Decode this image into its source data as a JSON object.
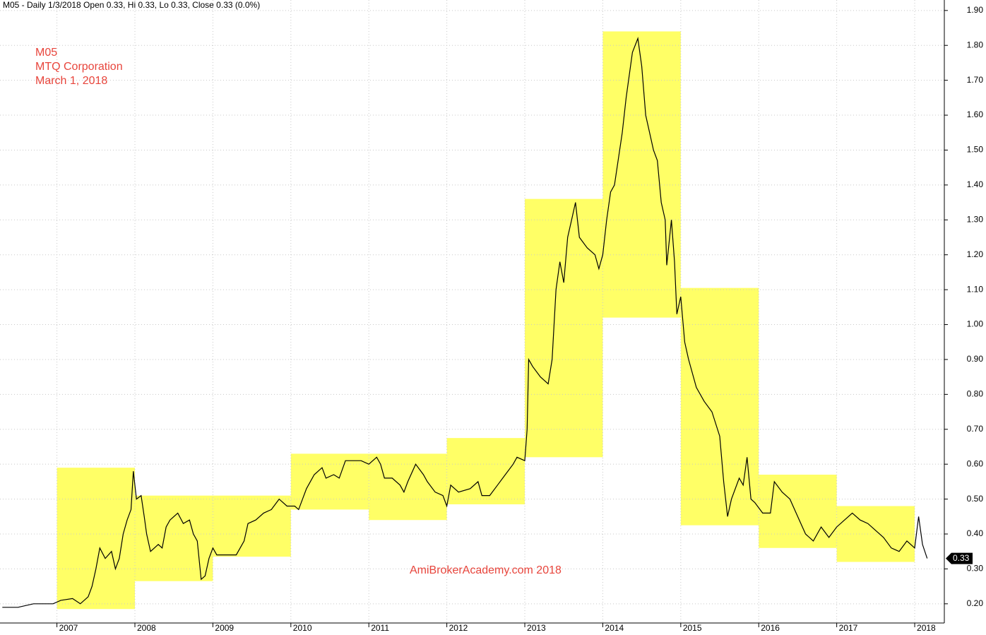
{
  "chart_data": {
    "type": "line",
    "header": "M05 - Daily 1/3/2018 Open 0.33, Hi 0.33, Lo 0.33, Close 0.33 (0.0%)",
    "ticker": "M05",
    "company": "MTQ Corporation",
    "date": "March 1, 2018",
    "watermark": "AmiBrokerAcademy.com  2018",
    "last_price": 0.33,
    "xlim": [
      2006.27,
      2018.38
    ],
    "xticks": [
      2007,
      2008,
      2009,
      2010,
      2011,
      2012,
      2013,
      2014,
      2015,
      2016,
      2017,
      2018
    ],
    "ylim": [
      0.145,
      1.93
    ],
    "yticks": [
      {
        "value": 0.2,
        "label": "0.20"
      },
      {
        "value": 0.3,
        "label": "0.30"
      },
      {
        "value": 0.4,
        "label": "0.40"
      },
      {
        "value": 0.5,
        "label": "0.50"
      },
      {
        "value": 0.6,
        "label": "0.60"
      },
      {
        "value": 0.7,
        "label": "0.70"
      },
      {
        "value": 0.8,
        "label": "0.80"
      },
      {
        "value": 0.9,
        "label": "0.90"
      },
      {
        "value": 1.0,
        "label": "1.00"
      },
      {
        "value": 1.1,
        "label": "1.10"
      },
      {
        "value": 1.2,
        "label": "1.20"
      },
      {
        "value": 1.3,
        "label": "1.30"
      },
      {
        "value": 1.4,
        "label": "1.40"
      },
      {
        "value": 1.5,
        "label": "1.50"
      },
      {
        "value": 1.6,
        "label": "1.60"
      },
      {
        "value": 1.7,
        "label": "1.70"
      },
      {
        "value": 1.8,
        "label": "1.80"
      },
      {
        "value": 1.9,
        "label": "1.90"
      }
    ],
    "grid": true,
    "boxes": {
      "color": "#ffff66",
      "x_start": [
        2007,
        2008,
        2009,
        2010,
        2011,
        2012,
        2013,
        2014,
        2015,
        2016,
        2017
      ],
      "x_end": [
        2008,
        2009,
        2010,
        2011,
        2012,
        2013,
        2014,
        2015,
        2016,
        2017,
        2018
      ],
      "high": [
        0.59,
        0.51,
        0.51,
        0.63,
        0.63,
        0.675,
        1.36,
        1.84,
        1.105,
        0.57,
        0.48
      ],
      "low": [
        0.185,
        0.265,
        0.335,
        0.47,
        0.44,
        0.485,
        0.62,
        1.02,
        0.425,
        0.36,
        0.32
      ]
    },
    "series": [
      {
        "name": "M05",
        "color": "#000000",
        "x": [
          2006.3,
          2006.5,
          2006.7,
          2006.95,
          2007.05,
          2007.2,
          2007.3,
          2007.4,
          2007.45,
          2007.5,
          2007.55,
          2007.62,
          2007.7,
          2007.75,
          2007.8,
          2007.85,
          2007.9,
          2007.95,
          2007.98,
          2008.02,
          2008.08,
          2008.12,
          2008.15,
          2008.2,
          2008.3,
          2008.35,
          2008.4,
          2008.45,
          2008.5,
          2008.55,
          2008.62,
          2008.7,
          2008.75,
          2008.8,
          2008.85,
          2008.9,
          2008.95,
          2009.0,
          2009.05,
          2009.15,
          2009.3,
          2009.4,
          2009.45,
          2009.55,
          2009.65,
          2009.75,
          2009.85,
          2009.95,
          2010.05,
          2010.1,
          2010.2,
          2010.3,
          2010.4,
          2010.45,
          2010.55,
          2010.62,
          2010.7,
          2010.8,
          2010.9,
          2011.0,
          2011.1,
          2011.15,
          2011.2,
          2011.3,
          2011.4,
          2011.45,
          2011.5,
          2011.6,
          2011.7,
          2011.75,
          2011.85,
          2011.95,
          2012.0,
          2012.05,
          2012.15,
          2012.3,
          2012.4,
          2012.45,
          2012.55,
          2012.65,
          2012.75,
          2012.85,
          2012.9,
          2013.0,
          2013.03,
          2013.05,
          2013.1,
          2013.2,
          2013.3,
          2013.35,
          2013.4,
          2013.45,
          2013.5,
          2013.55,
          2013.6,
          2013.65,
          2013.7,
          2013.8,
          2013.9,
          2013.95,
          2014.0,
          2014.05,
          2014.1,
          2014.15,
          2014.25,
          2014.3,
          2014.38,
          2014.45,
          2014.5,
          2014.55,
          2014.6,
          2014.65,
          2014.7,
          2014.75,
          2014.8,
          2014.82,
          2014.88,
          2014.92,
          2014.95,
          2015.0,
          2015.05,
          2015.1,
          2015.2,
          2015.3,
          2015.4,
          2015.5,
          2015.55,
          2015.6,
          2015.65,
          2015.75,
          2015.8,
          2015.85,
          2015.9,
          2015.95,
          2016.05,
          2016.15,
          2016.2,
          2016.3,
          2016.4,
          2016.5,
          2016.6,
          2016.7,
          2016.8,
          2016.9,
          2017.0,
          2017.1,
          2017.2,
          2017.3,
          2017.4,
          2017.5,
          2017.6,
          2017.7,
          2017.8,
          2017.9,
          2018.0,
          2018.05,
          2018.1,
          2018.16
        ],
        "values": [
          0.19,
          0.19,
          0.2,
          0.2,
          0.21,
          0.215,
          0.2,
          0.22,
          0.25,
          0.3,
          0.36,
          0.33,
          0.35,
          0.3,
          0.33,
          0.4,
          0.44,
          0.47,
          0.58,
          0.5,
          0.51,
          0.45,
          0.4,
          0.35,
          0.37,
          0.36,
          0.42,
          0.44,
          0.45,
          0.46,
          0.43,
          0.44,
          0.4,
          0.38,
          0.27,
          0.28,
          0.33,
          0.36,
          0.34,
          0.34,
          0.34,
          0.38,
          0.43,
          0.44,
          0.46,
          0.47,
          0.5,
          0.48,
          0.48,
          0.47,
          0.53,
          0.57,
          0.59,
          0.56,
          0.57,
          0.56,
          0.61,
          0.61,
          0.61,
          0.6,
          0.62,
          0.6,
          0.56,
          0.56,
          0.54,
          0.52,
          0.55,
          0.6,
          0.57,
          0.55,
          0.52,
          0.51,
          0.48,
          0.54,
          0.52,
          0.53,
          0.55,
          0.51,
          0.51,
          0.54,
          0.57,
          0.6,
          0.62,
          0.61,
          0.7,
          0.9,
          0.88,
          0.85,
          0.83,
          0.9,
          1.1,
          1.18,
          1.12,
          1.25,
          1.3,
          1.35,
          1.25,
          1.22,
          1.2,
          1.16,
          1.2,
          1.3,
          1.38,
          1.4,
          1.55,
          1.65,
          1.78,
          1.82,
          1.74,
          1.6,
          1.55,
          1.5,
          1.47,
          1.35,
          1.3,
          1.17,
          1.3,
          1.18,
          1.03,
          1.08,
          0.95,
          0.9,
          0.82,
          0.78,
          0.75,
          0.68,
          0.55,
          0.45,
          0.5,
          0.56,
          0.54,
          0.62,
          0.5,
          0.49,
          0.46,
          0.46,
          0.55,
          0.52,
          0.5,
          0.45,
          0.4,
          0.38,
          0.42,
          0.39,
          0.42,
          0.44,
          0.46,
          0.44,
          0.43,
          0.41,
          0.39,
          0.36,
          0.35,
          0.38,
          0.36,
          0.45,
          0.37,
          0.33
        ]
      }
    ]
  }
}
